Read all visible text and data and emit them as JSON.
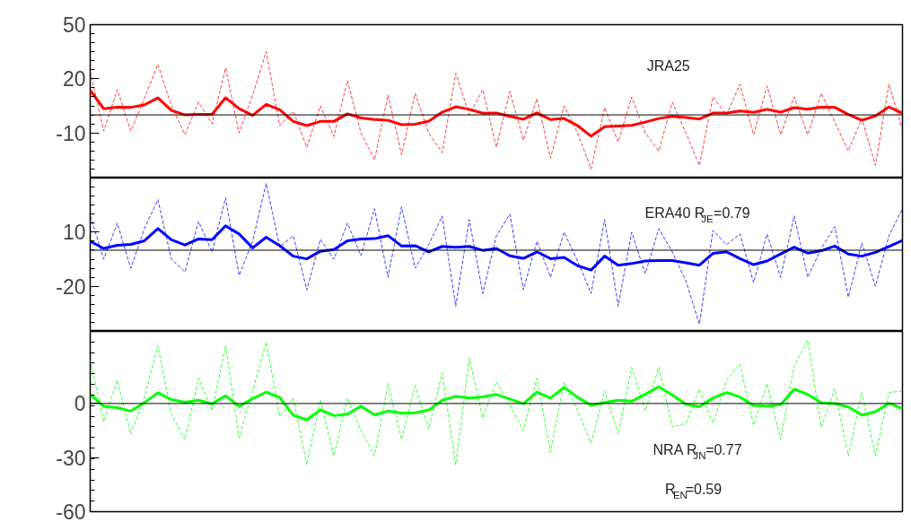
{
  "chart_data": [
    {
      "type": "line",
      "categories": [
        null,
        null,
        null,
        null,
        null,
        null,
        null,
        null,
        null,
        null,
        null,
        null,
        null,
        null,
        null,
        null,
        null,
        null,
        null,
        null,
        null,
        null,
        null,
        null,
        null,
        null,
        null,
        null,
        null,
        null,
        null,
        null,
        null,
        null,
        null,
        null,
        null,
        null,
        null,
        null,
        null,
        null,
        null,
        null,
        null,
        null,
        null,
        null,
        null,
        null,
        null,
        null,
        null,
        null,
        null,
        null,
        null,
        null,
        null,
        null,
        null
      ],
      "ylim": [
        -35,
        50
      ],
      "yticks": [
        50,
        20,
        -10
      ],
      "tick_labels": "y",
      "annotations": [
        "JRA25"
      ],
      "ref_lines": [
        {
          "axis": "y",
          "value": 0,
          "color": "#000000"
        }
      ],
      "series": [
        {
          "color": "#ff0000",
          "line_style": "dashed",
          "values": [
            24,
            -9,
            14,
            -9,
            9,
            28,
            5,
            -11,
            7,
            -5,
            26,
            -10,
            11,
            35,
            -6,
            2,
            -18,
            5,
            -12,
            19,
            -10,
            -25,
            11,
            -22,
            12,
            -10,
            -21,
            23,
            0,
            14,
            -18,
            13,
            -14,
            9,
            -24,
            5,
            -10,
            -30,
            4,
            -15,
            10,
            -10,
            -20,
            7,
            -10,
            -28,
            10,
            0,
            17,
            -11,
            16,
            -11,
            10,
            -11,
            12,
            -4,
            -20,
            -2,
            -28,
            17,
            -8
          ]
        },
        {
          "color": "#ff0000",
          "line_style": "solid",
          "values": [
            13.7,
            3.4,
            4.3,
            4.2,
            5.5,
            9.4,
            2.5,
            0,
            0.3,
            0.3,
            9.5,
            3.5,
            -0.3,
            5.8,
            2.8,
            -3.6,
            -5.9,
            -3.6,
            -3.6,
            0.6,
            -1.7,
            -2.6,
            -3,
            -5.4,
            -5.2,
            -3.5,
            1.5,
            4.5,
            3.1,
            0.9,
            1.1,
            -0.8,
            -2.4,
            1.1,
            -2.6,
            -2,
            -5.9,
            -11.8,
            -6.5,
            -6.2,
            -5.8,
            -4,
            -2,
            -0.8,
            -1.4,
            -2.3,
            1,
            1,
            2.2,
            1.4,
            3.1,
            1.5,
            4,
            3.1,
            4.3,
            4.2,
            0.2,
            -3,
            -0.6,
            4.4,
            0.9
          ]
        }
      ]
    },
    {
      "type": "line",
      "categories": [
        null,
        null,
        null,
        null,
        null,
        null,
        null,
        null,
        null,
        null,
        null,
        null,
        null,
        null,
        null,
        null,
        null,
        null,
        null,
        null,
        null,
        null,
        null,
        null,
        null,
        null,
        null,
        null,
        null,
        null,
        null,
        null,
        null,
        null,
        null,
        null,
        null,
        null,
        null,
        null,
        null,
        null,
        null,
        null,
        null,
        null,
        null,
        null,
        null,
        null,
        null,
        null,
        null,
        null,
        null,
        null,
        null,
        null,
        null,
        null,
        null
      ],
      "ylim": [
        -45,
        40
      ],
      "yticks": [
        10,
        -20
      ],
      "tick_labels": "y",
      "annotations": [
        "ERA40 R$_{JE}$=0.79"
      ],
      "ref_lines": [
        {
          "axis": "y",
          "value": 0,
          "color": "#000000"
        }
      ],
      "series": [
        {
          "color": "#0000ff",
          "line_style": "dashed",
          "values": [
            19,
            -5,
            15,
            -10,
            12,
            28,
            -5,
            -12,
            16,
            -1,
            29,
            -14,
            5,
            37,
            2,
            8,
            -22,
            6,
            -5,
            15,
            -3,
            23,
            -15,
            24,
            -10,
            3,
            19,
            -31,
            17,
            -24,
            8,
            20,
            -22,
            5,
            -15,
            10,
            -6,
            -24,
            17,
            -31,
            10,
            -13,
            12,
            -1,
            -17,
            -41,
            11,
            3,
            9,
            -18,
            9,
            -15,
            19,
            -15,
            1,
            13,
            -26,
            4,
            -20,
            8,
            23
          ]
        },
        {
          "color": "#0000ff",
          "line_style": "solid",
          "values": [
            4.9,
            1,
            2.7,
            3.2,
            5.2,
            12,
            5.8,
            2.9,
            6.2,
            5.8,
            13.5,
            9,
            1.3,
            7.2,
            2.5,
            -3.3,
            -4.8,
            -0.6,
            0.4,
            5.2,
            6.2,
            6.4,
            8.1,
            2.3,
            2.5,
            -1,
            2.1,
            1.6,
            2.1,
            -0.1,
            1,
            -3.1,
            -4.5,
            -0.9,
            -4.7,
            -4,
            -8.6,
            -11,
            -3.3,
            -8.3,
            -7.4,
            -6,
            -5.7,
            -5.7,
            -7,
            -8.3,
            -1.8,
            -0.9,
            -4.7,
            -8,
            -6,
            -2.1,
            1.7,
            -1.6,
            -0.3,
            2.3,
            -2.1,
            -3.3,
            -1.2,
            2,
            5.4
          ]
        }
      ]
    },
    {
      "type": "line",
      "categories": [
        null,
        null,
        null,
        null,
        null,
        null,
        null,
        null,
        null,
        null,
        null,
        null,
        null,
        null,
        null,
        null,
        null,
        null,
        null,
        null,
        null,
        null,
        null,
        null,
        null,
        null,
        null,
        null,
        null,
        null,
        null,
        null,
        null,
        null,
        null,
        null,
        null,
        null,
        null,
        null,
        null,
        null,
        null,
        null,
        null,
        null,
        null,
        null,
        null,
        null,
        null,
        null,
        null,
        null,
        null,
        null,
        null,
        null,
        null,
        null,
        null
      ],
      "ylim": [
        -60,
        40
      ],
      "yticks": [
        0,
        -30,
        -60
      ],
      "tick_labels": "y",
      "annotations": [
        "NRA R$_{JN}$=0.77",
        "R$_{EN}$=0.59"
      ],
      "ref_lines": [
        {
          "axis": "y",
          "value": 0,
          "color": "#000000"
        }
      ],
      "series": [
        {
          "color": "#00ff00",
          "line_style": "dashed",
          "values": [
            24,
            -10,
            13,
            -17,
            3,
            32,
            -6,
            -20,
            14,
            -4,
            32,
            -19,
            7,
            34,
            -7,
            3,
            -34,
            2,
            -29,
            3,
            -15,
            -29,
            11,
            -20,
            10,
            -14,
            17,
            -34,
            25,
            -8,
            12,
            -1,
            -15,
            14,
            -27,
            12,
            -4,
            -22,
            7,
            -17,
            20,
            -4,
            20,
            -13,
            -11,
            8,
            -11,
            13,
            22,
            -12,
            11,
            -20,
            21,
            35,
            -13,
            8,
            -29,
            6,
            -29,
            6,
            7
          ]
        },
        {
          "color": "#00ff00",
          "line_style": "solid",
          "values": [
            5.1,
            -1.6,
            -2.3,
            -4.2,
            0.4,
            6,
            2.2,
            0.7,
            1.8,
            -0.2,
            4.3,
            -1.6,
            2.7,
            6.3,
            3.4,
            -6.6,
            -9,
            -3.5,
            -6.7,
            -5.9,
            -1.5,
            -6.3,
            -4.2,
            -5.4,
            -5.1,
            -3.7,
            1.8,
            4,
            3.1,
            3.7,
            5,
            2.5,
            -0.1,
            6.3,
            3,
            8.9,
            3.5,
            -1,
            0.6,
            1.8,
            1.3,
            5.1,
            9.3,
            4.7,
            -0.4,
            -1.8,
            3,
            6.1,
            3.6,
            -1.1,
            -1.4,
            -0.7,
            7.9,
            5.1,
            0.4,
            -0.1,
            -1.9,
            -6.4,
            -4.5,
            0.1,
            -2.9
          ]
        }
      ]
    }
  ]
}
